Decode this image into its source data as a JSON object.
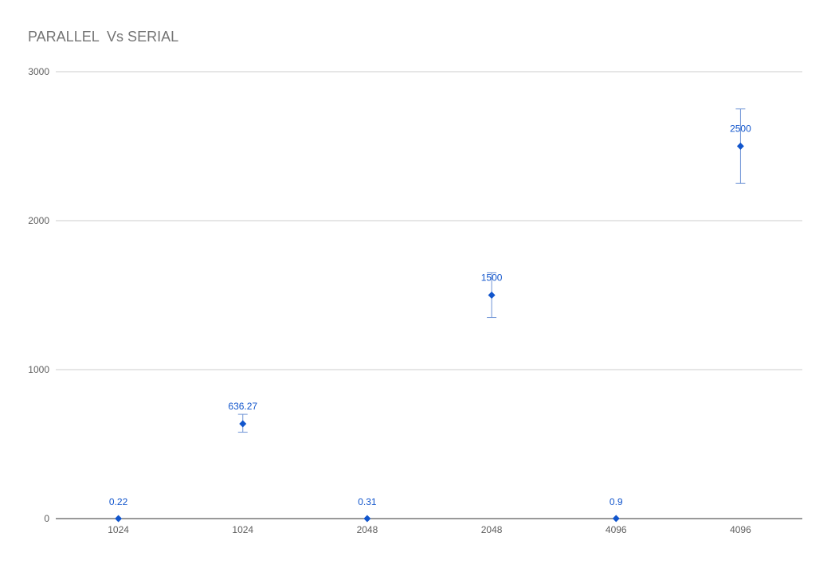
{
  "chart_data": {
    "type": "scatter",
    "title": "PARALLEL  Vs SERIAL",
    "xlabel": "",
    "ylabel": "",
    "categories": [
      "1024",
      "1024",
      "2048",
      "2048",
      "4096",
      "4096"
    ],
    "series": [
      {
        "values": [
          0.22,
          636.27,
          0.31,
          1500,
          0.9,
          2500
        ],
        "error_low": [
          0.22,
          580,
          0.31,
          1350,
          0.9,
          2250
        ],
        "error_high": [
          0.22,
          700,
          0.31,
          1650,
          0.9,
          2750
        ],
        "data_labels": [
          "0.22",
          "636.27",
          "0.31",
          "1500",
          "0.9",
          "2500"
        ]
      }
    ],
    "ylim": [
      0,
      3000
    ],
    "yticks": [
      0,
      1000,
      2000,
      3000
    ],
    "grid": true,
    "legend": "none",
    "marker": "diamond",
    "colors": {
      "series": "#1155cc",
      "grid": "#cccccc",
      "axis": "#333333",
      "error_bar": "#6f94d6"
    }
  }
}
